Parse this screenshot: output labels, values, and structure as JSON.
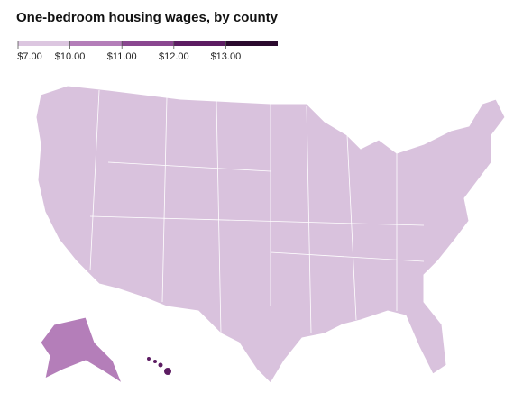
{
  "title": "One-bedroom housing wages, by county",
  "legend": {
    "ticks": [
      {
        "value": 7,
        "label": "$7.00"
      },
      {
        "value": 10,
        "label": "$10.00"
      },
      {
        "value": 11,
        "label": "$11.00"
      },
      {
        "value": 12,
        "label": "$12.00"
      },
      {
        "value": 13,
        "label": "$13.00"
      }
    ],
    "colors": [
      "#dcc6e0",
      "#b47eb9",
      "#8a4790",
      "#5c1c62",
      "#2b0a2e"
    ]
  }
}
